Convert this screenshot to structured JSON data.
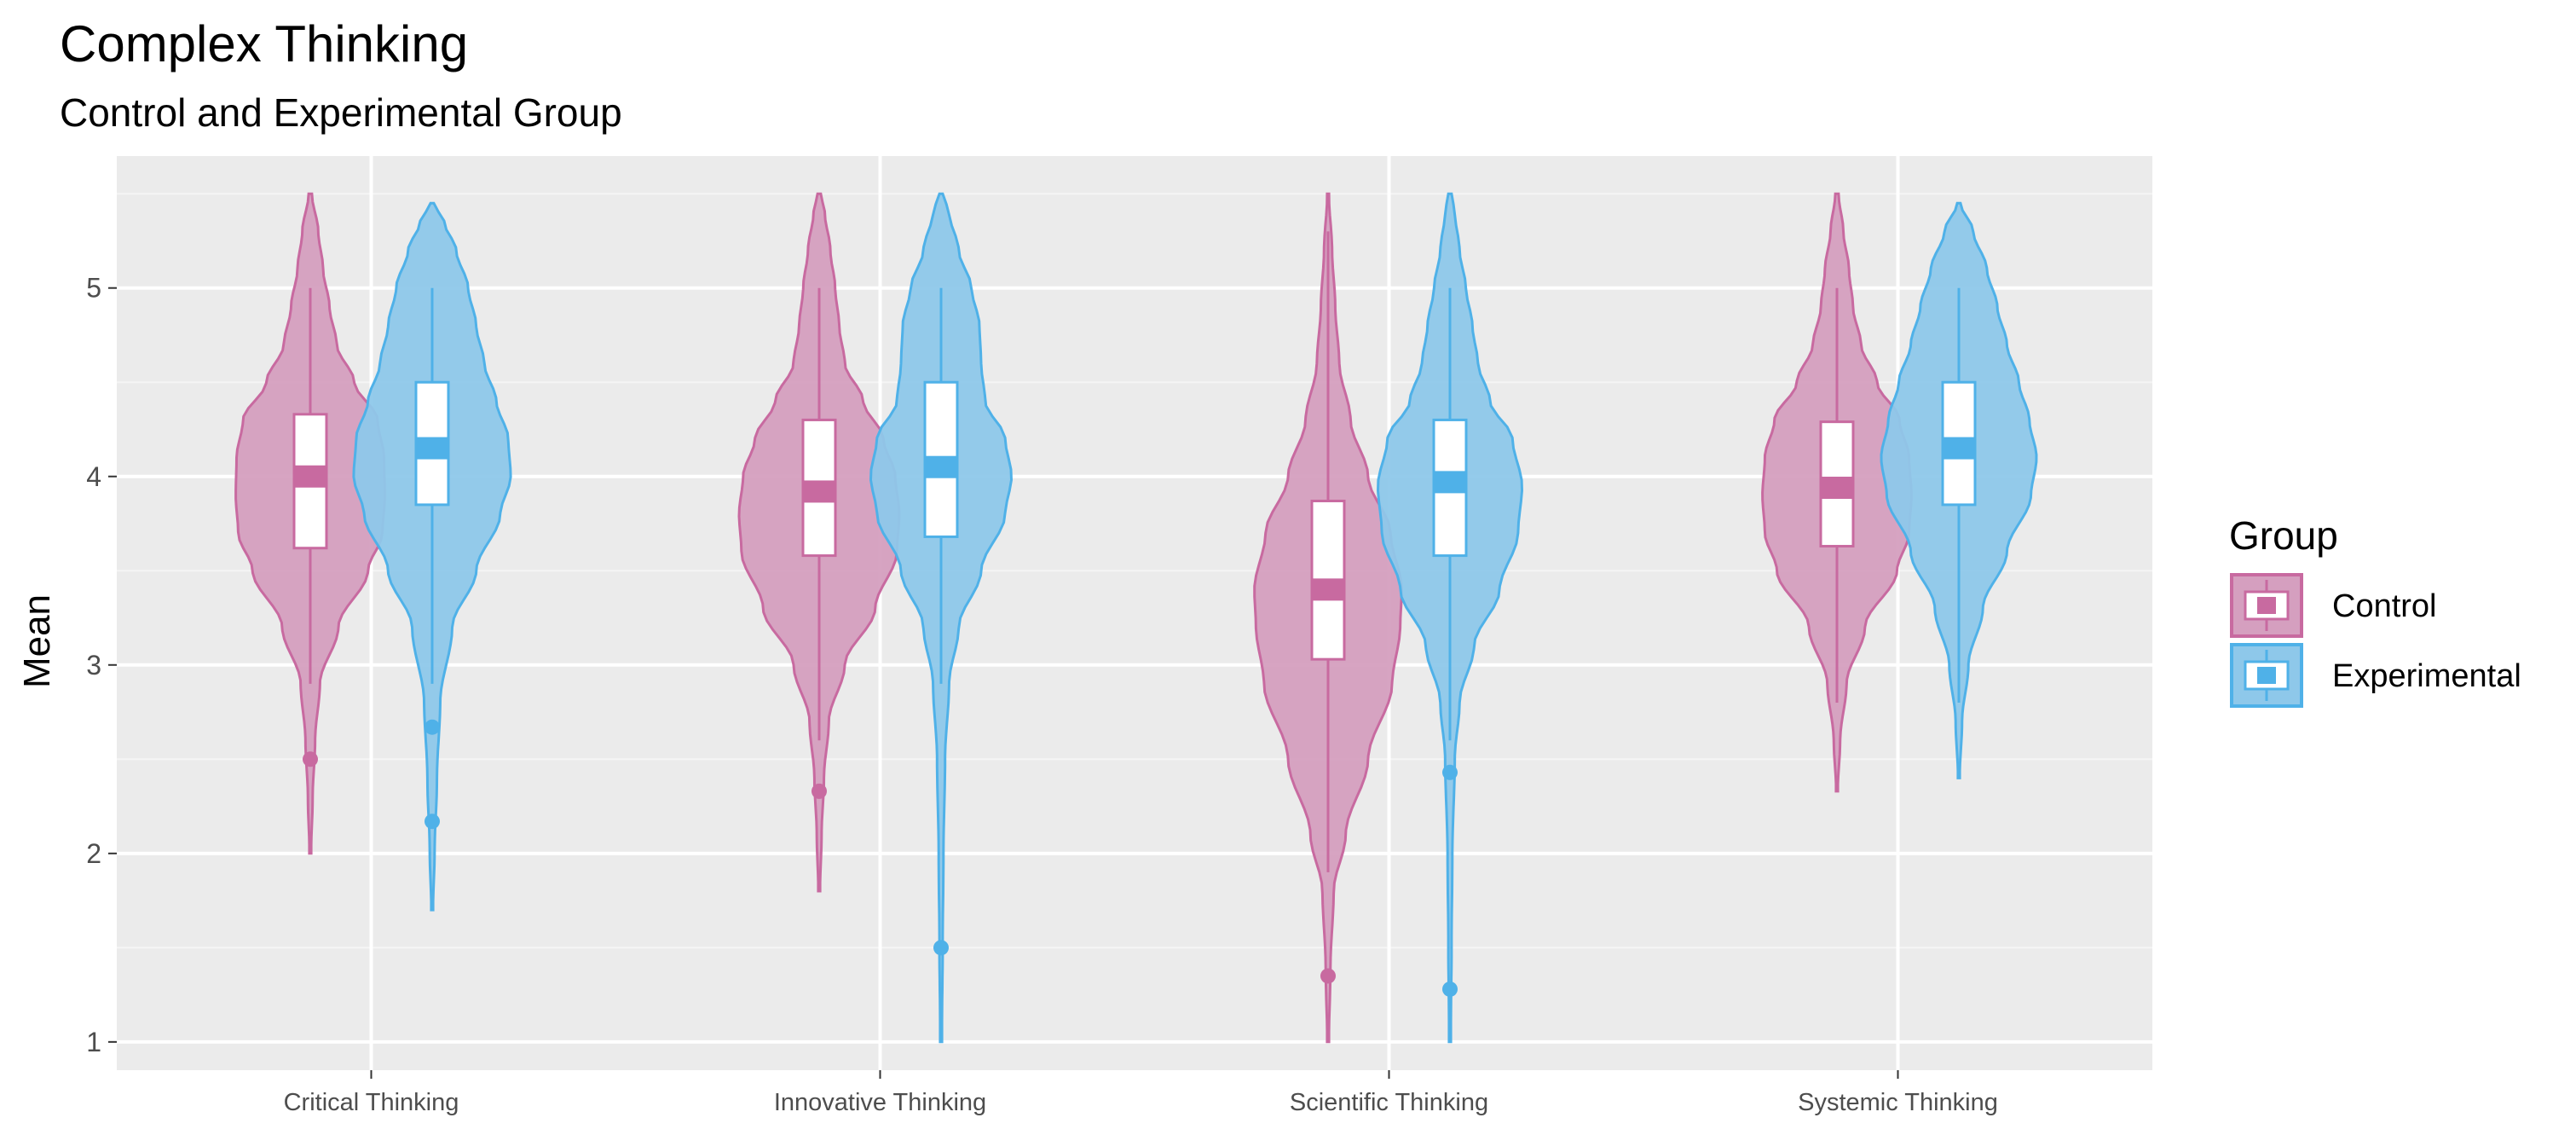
{
  "chart_data": {
    "type": "violin",
    "title": "Complex Thinking",
    "subtitle": "Control and Experimental Group",
    "xlabel": "",
    "ylabel": "Mean",
    "ylim": [
      0.85,
      5.7
    ],
    "yticks": [
      1,
      2,
      3,
      4,
      5
    ],
    "categories": [
      "Critical Thinking",
      "Innovative Thinking",
      "Scientific Thinking",
      "Systemic Thinking"
    ],
    "legend": {
      "title": "Group",
      "position": "right",
      "entries": [
        {
          "name": "Control",
          "fill": "#d59fbf",
          "stroke": "#c86aa0",
          "accent": "#c86aa0"
        },
        {
          "name": "Experimental",
          "fill": "#8ec8ea",
          "stroke": "#4fb1e8",
          "accent": "#4fb1e8"
        }
      ]
    },
    "series": [
      {
        "name": "Control",
        "groups": [
          {
            "category": "Critical Thinking",
            "min": 2.0,
            "max": 5.5,
            "q1": 3.62,
            "median": 4.0,
            "q3": 4.33,
            "whisker_low": 2.9,
            "whisker_high": 5.0,
            "outliers": [
              2.5
            ],
            "density": [
              [
                2.0,
                0.01
              ],
              [
                2.3,
                0.03
              ],
              [
                2.6,
                0.06
              ],
              [
                2.9,
                0.12
              ],
              [
                3.2,
                0.35
              ],
              [
                3.5,
                0.72
              ],
              [
                3.7,
                0.9
              ],
              [
                3.9,
                0.93
              ],
              [
                4.1,
                0.92
              ],
              [
                4.3,
                0.84
              ],
              [
                4.5,
                0.55
              ],
              [
                4.7,
                0.33
              ],
              [
                4.9,
                0.24
              ],
              [
                5.1,
                0.16
              ],
              [
                5.3,
                0.1
              ],
              [
                5.5,
                0.02
              ]
            ]
          },
          {
            "category": "Innovative Thinking",
            "min": 1.8,
            "max": 5.5,
            "q1": 3.58,
            "median": 3.92,
            "q3": 4.3,
            "whisker_low": 2.6,
            "whisker_high": 5.0,
            "outliers": [
              2.33
            ],
            "density": [
              [
                1.8,
                0.01
              ],
              [
                2.1,
                0.03
              ],
              [
                2.4,
                0.06
              ],
              [
                2.7,
                0.12
              ],
              [
                3.0,
                0.32
              ],
              [
                3.3,
                0.7
              ],
              [
                3.6,
                0.97
              ],
              [
                3.8,
                1.0
              ],
              [
                4.0,
                0.95
              ],
              [
                4.2,
                0.8
              ],
              [
                4.4,
                0.55
              ],
              [
                4.6,
                0.32
              ],
              [
                4.8,
                0.25
              ],
              [
                5.0,
                0.2
              ],
              [
                5.2,
                0.14
              ],
              [
                5.4,
                0.07
              ],
              [
                5.5,
                0.02
              ]
            ]
          },
          {
            "category": "Scientific Thinking",
            "min": 1.0,
            "max": 5.5,
            "q1": 3.03,
            "median": 3.4,
            "q3": 3.87,
            "whisker_low": 1.9,
            "whisker_high": 5.3,
            "outliers": [
              1.35
            ],
            "density": [
              [
                1.0,
                0.01
              ],
              [
                1.4,
                0.03
              ],
              [
                1.8,
                0.07
              ],
              [
                2.1,
                0.22
              ],
              [
                2.5,
                0.5
              ],
              [
                2.9,
                0.8
              ],
              [
                3.2,
                0.9
              ],
              [
                3.4,
                0.92
              ],
              [
                3.7,
                0.78
              ],
              [
                4.0,
                0.5
              ],
              [
                4.3,
                0.28
              ],
              [
                4.6,
                0.14
              ],
              [
                4.9,
                0.09
              ],
              [
                5.2,
                0.05
              ],
              [
                5.5,
                0.01
              ]
            ]
          },
          {
            "category": "Systemic Thinking",
            "min": 2.33,
            "max": 5.5,
            "q1": 3.63,
            "median": 3.94,
            "q3": 4.29,
            "whisker_low": 2.8,
            "whisker_high": 5.0,
            "outliers": [],
            "density": [
              [
                2.33,
                0.01
              ],
              [
                2.6,
                0.04
              ],
              [
                2.9,
                0.12
              ],
              [
                3.2,
                0.35
              ],
              [
                3.5,
                0.75
              ],
              [
                3.7,
                0.9
              ],
              [
                3.9,
                0.93
              ],
              [
                4.1,
                0.9
              ],
              [
                4.3,
                0.78
              ],
              [
                4.5,
                0.5
              ],
              [
                4.7,
                0.3
              ],
              [
                4.9,
                0.2
              ],
              [
                5.1,
                0.15
              ],
              [
                5.3,
                0.08
              ],
              [
                5.5,
                0.02
              ]
            ]
          }
        ]
      },
      {
        "name": "Experimental",
        "groups": [
          {
            "category": "Critical Thinking",
            "min": 1.7,
            "max": 5.45,
            "q1": 3.85,
            "median": 4.15,
            "q3": 4.5,
            "whisker_low": 2.9,
            "whisker_high": 5.0,
            "outliers": [
              2.67,
              2.17
            ],
            "density": [
              [
                1.7,
                0.01
              ],
              [
                2.0,
                0.03
              ],
              [
                2.4,
                0.06
              ],
              [
                2.8,
                0.1
              ],
              [
                3.2,
                0.25
              ],
              [
                3.5,
                0.55
              ],
              [
                3.8,
                0.85
              ],
              [
                4.0,
                0.98
              ],
              [
                4.2,
                0.95
              ],
              [
                4.4,
                0.8
              ],
              [
                4.6,
                0.65
              ],
              [
                4.8,
                0.55
              ],
              [
                5.0,
                0.45
              ],
              [
                5.2,
                0.3
              ],
              [
                5.35,
                0.15
              ],
              [
                5.45,
                0.02
              ]
            ]
          },
          {
            "category": "Innovative Thinking",
            "min": 1.0,
            "max": 5.5,
            "q1": 3.68,
            "median": 4.05,
            "q3": 4.5,
            "whisker_low": 2.9,
            "whisker_high": 5.0,
            "outliers": [
              1.5
            ],
            "density": [
              [
                1.0,
                0.01
              ],
              [
                1.5,
                0.02
              ],
              [
                2.0,
                0.03
              ],
              [
                2.5,
                0.05
              ],
              [
                2.9,
                0.1
              ],
              [
                3.2,
                0.22
              ],
              [
                3.5,
                0.5
              ],
              [
                3.8,
                0.8
              ],
              [
                4.0,
                0.88
              ],
              [
                4.2,
                0.8
              ],
              [
                4.4,
                0.55
              ],
              [
                4.6,
                0.5
              ],
              [
                4.8,
                0.48
              ],
              [
                5.0,
                0.38
              ],
              [
                5.2,
                0.22
              ],
              [
                5.4,
                0.1
              ],
              [
                5.5,
                0.02
              ]
            ]
          },
          {
            "category": "Scientific Thinking",
            "min": 1.0,
            "max": 5.5,
            "q1": 3.58,
            "median": 3.97,
            "q3": 4.3,
            "whisker_low": 2.6,
            "whisker_high": 5.0,
            "outliers": [
              2.43,
              1.28
            ],
            "density": [
              [
                1.0,
                0.01
              ],
              [
                1.5,
                0.02
              ],
              [
                2.0,
                0.03
              ],
              [
                2.5,
                0.06
              ],
              [
                2.8,
                0.12
              ],
              [
                3.1,
                0.3
              ],
              [
                3.4,
                0.62
              ],
              [
                3.7,
                0.85
              ],
              [
                3.95,
                0.9
              ],
              [
                4.2,
                0.78
              ],
              [
                4.4,
                0.5
              ],
              [
                4.6,
                0.35
              ],
              [
                4.8,
                0.28
              ],
              [
                5.0,
                0.2
              ],
              [
                5.2,
                0.12
              ],
              [
                5.4,
                0.06
              ],
              [
                5.5,
                0.02
              ]
            ]
          },
          {
            "category": "Systemic Thinking",
            "min": 2.4,
            "max": 5.45,
            "q1": 3.85,
            "median": 4.15,
            "q3": 4.5,
            "whisker_low": 2.8,
            "whisker_high": 5.0,
            "outliers": [],
            "density": [
              [
                2.4,
                0.01
              ],
              [
                2.7,
                0.04
              ],
              [
                3.0,
                0.12
              ],
              [
                3.3,
                0.3
              ],
              [
                3.6,
                0.6
              ],
              [
                3.9,
                0.9
              ],
              [
                4.1,
                0.97
              ],
              [
                4.3,
                0.88
              ],
              [
                4.5,
                0.75
              ],
              [
                4.7,
                0.6
              ],
              [
                4.9,
                0.48
              ],
              [
                5.1,
                0.35
              ],
              [
                5.3,
                0.18
              ],
              [
                5.45,
                0.02
              ]
            ]
          }
        ]
      }
    ],
    "panel_background": "#ebebeb",
    "grid": true
  }
}
